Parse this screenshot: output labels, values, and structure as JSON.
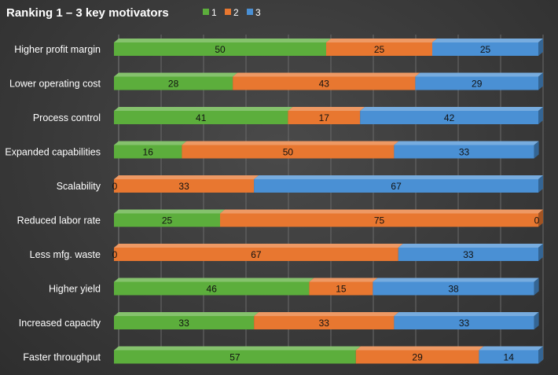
{
  "chart_data": {
    "type": "bar",
    "orientation": "horizontal",
    "stacked": true,
    "style": "3d",
    "title": "Ranking 1 – 3 key motivators",
    "xlim": [
      0,
      100
    ],
    "grid": true,
    "legend_position": "top-left",
    "categories": [
      "Higher profit margin",
      "Lower operating cost",
      "Process control",
      "Expanded capabilities",
      "Scalability",
      "Reduced labor rate",
      "Less mfg. waste",
      "Higher yield",
      "Increased capacity",
      "Faster throughput"
    ],
    "series": [
      {
        "name": "1",
        "color": "#5cae3c",
        "values": [
          50,
          28,
          41,
          16,
          0,
          25,
          0,
          46,
          33,
          57
        ]
      },
      {
        "name": "2",
        "color": "#e87730",
        "values": [
          25,
          43,
          17,
          50,
          33,
          75,
          67,
          15,
          33,
          29
        ]
      },
      {
        "name": "3",
        "color": "#4a90d4",
        "values": [
          25,
          29,
          42,
          33,
          67,
          0,
          33,
          38,
          33,
          14
        ]
      }
    ]
  }
}
